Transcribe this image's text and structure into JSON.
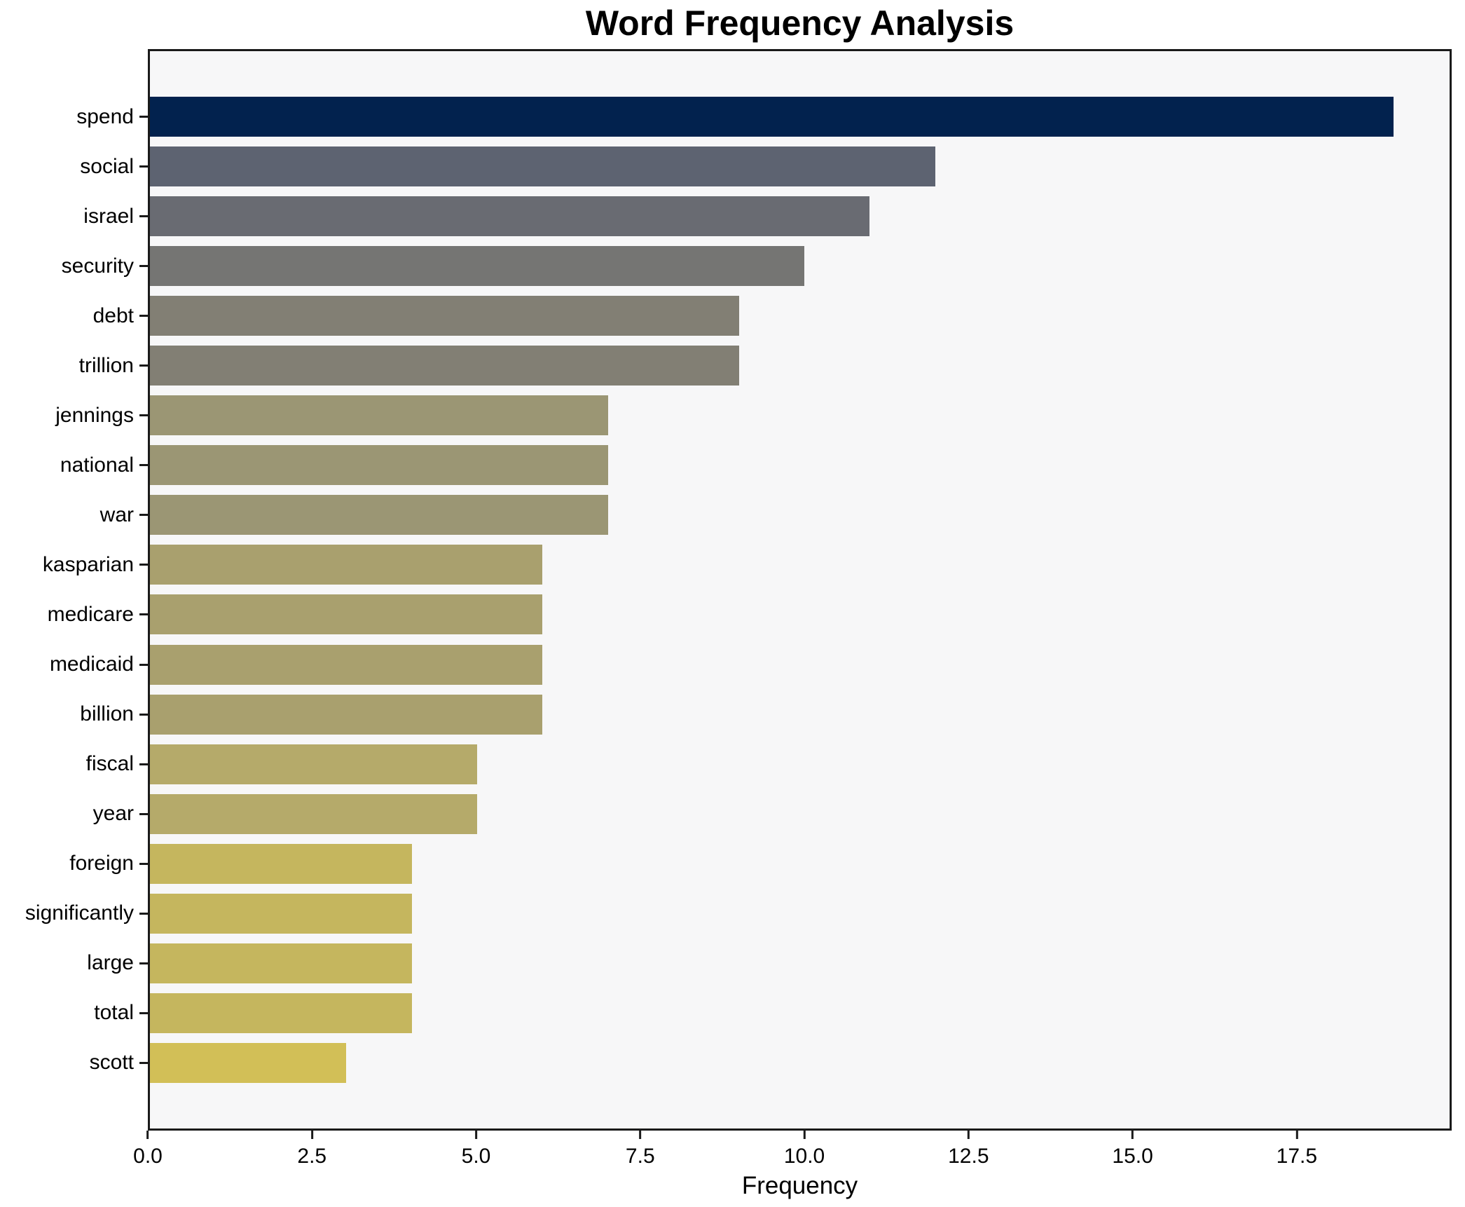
{
  "title": "Word Frequency Analysis",
  "chart_data": {
    "type": "bar",
    "orientation": "horizontal",
    "title": "Word Frequency Analysis",
    "xlabel": "Frequency",
    "ylabel": "",
    "categories": [
      "spend",
      "social",
      "israel",
      "security",
      "debt",
      "trillion",
      "jennings",
      "national",
      "war",
      "kasparian",
      "medicare",
      "medicaid",
      "billion",
      "fiscal",
      "year",
      "foreign",
      "significantly",
      "large",
      "total",
      "scott"
    ],
    "values": [
      19,
      12,
      11,
      10,
      9,
      9,
      7,
      7,
      7,
      6,
      6,
      6,
      6,
      5,
      5,
      4,
      4,
      4,
      4,
      3
    ],
    "bar_colors": [
      "#02224e",
      "#5d6371",
      "#696b72",
      "#757573",
      "#827f74",
      "#827f74",
      "#9b9674",
      "#9b9674",
      "#9b9674",
      "#a9a06e",
      "#a9a06e",
      "#a9a06e",
      "#a9a06e",
      "#b5aa6a",
      "#b5aa6a",
      "#c5b65e",
      "#c5b65e",
      "#c5b65e",
      "#c5b65e",
      "#d2bf57"
    ],
    "xlim": [
      0,
      19.86
    ],
    "xticks": [
      0,
      2.5,
      5,
      7.5,
      10,
      12.5,
      15,
      17.5
    ],
    "xtick_labels": [
      "0.0",
      "2.5",
      "5.0",
      "7.5",
      "10.0",
      "12.5",
      "15.0",
      "17.5"
    ],
    "grid": false,
    "legend_position": "none",
    "plot_background": "#f7f7f8",
    "figure_background": "#ffffff",
    "spine_color": "#1a1a1a",
    "bar_height_fraction": 0.8
  }
}
